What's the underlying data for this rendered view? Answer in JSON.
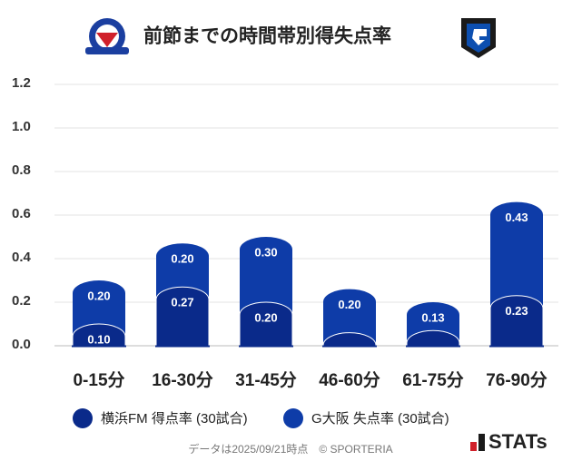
{
  "chart_data": {
    "type": "stacked-bar",
    "title": "前節までの時間帯別得失点率",
    "categories": [
      "0-15分",
      "16-30分",
      "31-45分",
      "46-60分",
      "61-75分",
      "76-90分"
    ],
    "series": [
      {
        "name": "横浜FM 得点率 (30試合)",
        "color": "#0a2a8a",
        "values": [
          0.1,
          0.27,
          0.2,
          0.06,
          0.07,
          0.23
        ],
        "value_labels": [
          "0.10",
          "0.27",
          "0.20",
          null,
          null,
          "0.23"
        ]
      },
      {
        "name": "G大阪 失点率 (30試合)",
        "color": "#0e3ca8",
        "values": [
          0.2,
          0.2,
          0.3,
          0.2,
          0.13,
          0.43
        ],
        "value_labels": [
          "0.20",
          "0.20",
          "0.30",
          "0.20",
          "0.13",
          "0.43"
        ]
      }
    ],
    "ylim": [
      0,
      1.2
    ],
    "yticks": [
      {
        "value": 0,
        "label": "0.0"
      },
      0.2,
      0.4,
      0.6,
      0.8,
      {
        "value": 1,
        "label": "1.0"
      },
      1.2
    ],
    "grid": true,
    "footer": "データは2025/09/21時点　© SPORTERIA",
    "brand": "STATs"
  }
}
